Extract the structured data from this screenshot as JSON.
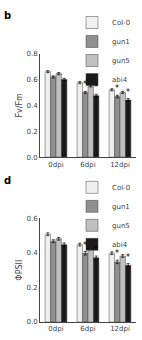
{
  "chart_data": [
    {
      "type": "bar",
      "title": "b",
      "y_label": "Fv/Fm",
      "categories": [
        "0dpi",
        "6dpi",
        "12dpi"
      ],
      "series": [
        {
          "name": "Col-0",
          "color": "#f0f0f0",
          "values": [
            0.66,
            0.575,
            0.52
          ],
          "errors": [
            0.008,
            0.008,
            0.008
          ]
        },
        {
          "name": "gun1",
          "color": "#909090",
          "values": [
            0.62,
            0.5,
            0.468
          ],
          "errors": [
            0.008,
            0.008,
            0.01
          ]
        },
        {
          "name": "gun5",
          "color": "#c0c0c0",
          "values": [
            0.645,
            0.55,
            0.5
          ],
          "errors": [
            0.008,
            0.008,
            0.008
          ]
        },
        {
          "name": "abi4",
          "color": "#1a1a1a",
          "values": [
            0.6,
            0.475,
            0.442
          ],
          "errors": [
            0.008,
            0.01,
            0.01
          ]
        }
      ],
      "annotations": [
        {
          "text": "*",
          "category": "6dpi",
          "series": "gun1"
        },
        {
          "text": "*",
          "category": "6dpi",
          "series": "abi4"
        },
        {
          "text": "*",
          "category": "12dpi",
          "series": "gun1"
        },
        {
          "text": "*",
          "category": "12dpi",
          "series": "abi4"
        }
      ],
      "ylim": [
        0.0,
        0.8
      ],
      "yticks": [
        {
          "value": 0.0,
          "label": "0.0"
        },
        0.2,
        0.4,
        0.6,
        0.8
      ],
      "grid": false,
      "legend": "upper right"
    },
    {
      "type": "bar",
      "title": "d",
      "y_label": "ΦPSII",
      "categories": [
        "0dpi",
        "6dpi",
        "12dpi"
      ],
      "series": [
        {
          "name": "Col-0",
          "color": "#f0f0f0",
          "values": [
            0.508,
            0.448,
            0.398
          ],
          "errors": [
            0.008,
            0.008,
            0.008
          ]
        },
        {
          "name": "gun1",
          "color": "#909090",
          "values": [
            0.468,
            0.398,
            0.348
          ],
          "errors": [
            0.008,
            0.01,
            0.01
          ]
        },
        {
          "name": "gun5",
          "color": "#c0c0c0",
          "values": [
            0.482,
            0.428,
            0.382
          ],
          "errors": [
            0.008,
            0.008,
            0.008
          ]
        },
        {
          "name": "abi4",
          "color": "#1a1a1a",
          "values": [
            0.448,
            0.372,
            0.328
          ],
          "errors": [
            0.01,
            0.01,
            0.01
          ]
        }
      ],
      "annotations": [
        {
          "text": "*",
          "category": "6dpi",
          "series": "gun1"
        },
        {
          "text": "*",
          "category": "6dpi",
          "series": "abi4"
        },
        {
          "text": "*",
          "category": "12dpi",
          "series": "gun1"
        },
        {
          "text": "*",
          "category": "12dpi",
          "series": "abi4"
        }
      ],
      "ylim": [
        0.0,
        0.6
      ],
      "yticks": [
        {
          "value": 0.0,
          "label": "0.0"
        },
        0.2,
        0.4,
        0.6
      ],
      "grid": false,
      "legend": "upper right"
    }
  ]
}
